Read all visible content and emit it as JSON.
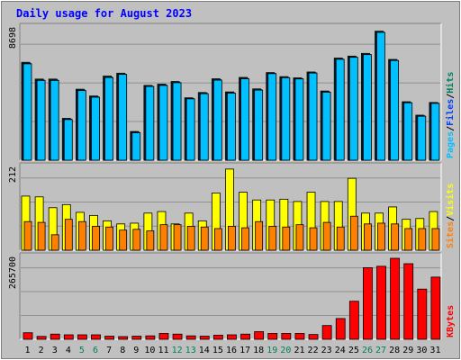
{
  "chart_data": {
    "type": "bar",
    "title": "Daily usage for August 2023",
    "categories": [
      "1",
      "2",
      "3",
      "4",
      "5",
      "6",
      "7",
      "8",
      "9",
      "10",
      "11",
      "12",
      "13",
      "14",
      "15",
      "16",
      "17",
      "18",
      "19",
      "20",
      "21",
      "22",
      "23",
      "24",
      "25",
      "26",
      "27",
      "28",
      "29",
      "30",
      "31"
    ],
    "weekend_days": [
      5,
      6,
      12,
      13,
      19,
      20,
      26,
      27
    ],
    "colors": {
      "background": "#c0c0c0",
      "frame": "#808080",
      "gridline": "#a0a0a0",
      "title": "#0000ff",
      "hits": "#00805c",
      "files": "#0040ff",
      "pages": "#00c0ff",
      "visits": "#ffff00",
      "sites": "#ff8000",
      "kbytes": "#ff0000",
      "weekend_label": "#00805c",
      "weekday_label": "#000000"
    },
    "panels": [
      {
        "id": "hits-files-pages",
        "ymax_label": "8698",
        "ymax": 8698,
        "legend": [
          {
            "text": "Pages",
            "color": "#00c0ff"
          },
          {
            "text": "/",
            "color": "#000000"
          },
          {
            "text": "Files",
            "color": "#0040ff"
          },
          {
            "text": "/",
            "color": "#000000"
          },
          {
            "text": "Hits",
            "color": "#00805c"
          }
        ],
        "series": [
          {
            "name": "Hits",
            "values": [
              6480,
              5370,
              5370,
              2770,
              4700,
              4250,
              5570,
              5760,
              1900,
              4950,
              5030,
              5210,
              4130,
              4480,
              5390,
              4520,
              5480,
              4720,
              5800,
              5530,
              5450,
              5840,
              4580,
              6760,
              6890,
              7070,
              8540,
              6670,
              3870,
              2980,
              3820
            ]
          },
          {
            "name": "Files",
            "values": [
              6420,
              5310,
              5310,
              2720,
              4640,
              4200,
              5500,
              5700,
              1850,
              4900,
              4980,
              5150,
              4080,
              4430,
              5330,
              4470,
              5420,
              4670,
              5750,
              5480,
              5400,
              5790,
              4530,
              6700,
              6830,
              7010,
              8480,
              6620,
              3820,
              2930,
              3780
            ]
          },
          {
            "name": "Pages",
            "values": [
              6380,
              5280,
              5280,
              2690,
              4610,
              4170,
              5470,
              5680,
              1820,
              4880,
              4950,
              5130,
              4060,
              4400,
              5300,
              4440,
              5390,
              4640,
              5730,
              5460,
              5380,
              5770,
              4500,
              6680,
              6810,
              6990,
              8460,
              6600,
              3800,
              2910,
              3760
            ]
          }
        ]
      },
      {
        "id": "visits-sites",
        "ymax_label": "212",
        "ymax": 212,
        "legend": [
          {
            "text": "Sites",
            "color": "#ff8000"
          },
          {
            "text": "/",
            "color": "#000000"
          },
          {
            "text": "Visits",
            "color": "#ffff00"
          }
        ],
        "series": [
          {
            "name": "Visits",
            "values": [
              140,
              138,
              110,
              118,
              98,
              90,
              76,
              68,
              70,
              96,
              100,
              68,
              96,
              76,
              148,
              210,
              150,
              130,
              130,
              132,
              126,
              150,
              126,
              126,
              186,
              96,
              96,
              112,
              80,
              82,
              100
            ]
          },
          {
            "name": "Sites",
            "values": [
              74,
              72,
              40,
              80,
              74,
              62,
              60,
              52,
              54,
              50,
              66,
              66,
              62,
              60,
              56,
              62,
              58,
              74,
              62,
              60,
              66,
              58,
              72,
              60,
              88,
              68,
              70,
              68,
              56,
              56,
              56
            ]
          }
        ]
      },
      {
        "id": "kbytes",
        "ymax_label": "265700",
        "ymax": 265700,
        "legend": [
          {
            "text": "KBytes",
            "color": "#ff0000"
          }
        ],
        "series": [
          {
            "name": "KBytes",
            "values": [
              21500,
              9500,
              17000,
              14700,
              14700,
              14700,
              10200,
              8800,
              10200,
              11300,
              19300,
              17000,
              11300,
              10200,
              13600,
              14700,
              17000,
              25000,
              19300,
              19300,
              19300,
              15800,
              45200,
              68100,
              124800,
              235000,
              239500,
              265700,
              248000,
              164700,
              204000
            ]
          }
        ]
      }
    ]
  }
}
